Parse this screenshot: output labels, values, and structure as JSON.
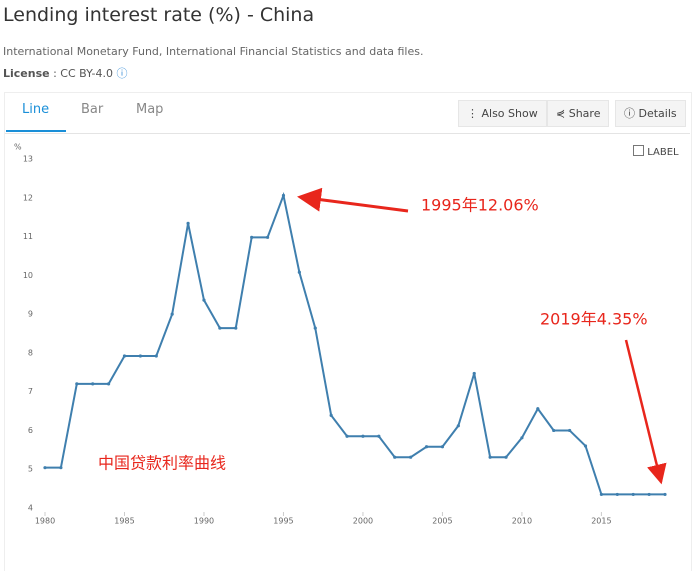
{
  "header": {
    "title": "Lending interest rate (%) - China",
    "source": "International Monetary Fund, International Financial Statistics and data files.",
    "license_label": "License",
    "license_value": ": CC BY-4.0"
  },
  "tabs": [
    "Line",
    "Bar",
    "Map"
  ],
  "buttons": [
    "Also Show",
    "Share",
    "Details"
  ],
  "label_toggle": "LABEL",
  "chart_data": {
    "type": "line",
    "y_label": "%",
    "color": "#3f7fae",
    "x": [
      1980,
      1981,
      1982,
      1983,
      1984,
      1985,
      1986,
      1987,
      1988,
      1989,
      1990,
      1991,
      1992,
      1993,
      1994,
      1995,
      1996,
      1997,
      1998,
      1999,
      2000,
      2001,
      2002,
      2003,
      2004,
      2005,
      2006,
      2007,
      2008,
      2009,
      2010,
      2011,
      2012,
      2013,
      2014,
      2015,
      2016,
      2017,
      2018,
      2019
    ],
    "values": [
      5.04,
      5.04,
      7.2,
      7.2,
      7.2,
      7.92,
      7.92,
      7.92,
      9.0,
      11.34,
      9.36,
      8.64,
      8.64,
      10.98,
      10.98,
      12.06,
      10.08,
      8.64,
      6.39,
      5.85,
      5.85,
      5.85,
      5.31,
      5.31,
      5.58,
      5.58,
      6.12,
      7.47,
      5.31,
      5.31,
      5.81,
      6.56,
      6.0,
      6.0,
      5.6,
      4.35,
      4.35,
      4.35,
      4.35,
      4.35
    ],
    "xlim": [
      1980,
      2019
    ],
    "ylim": [
      4,
      13
    ],
    "xticks": [
      1980,
      1985,
      1990,
      1995,
      2000,
      2005,
      2010,
      2015
    ],
    "yticks": [
      4,
      5,
      6,
      7,
      8,
      9,
      10,
      11,
      12,
      13
    ],
    "annotations": [
      "1995年12.06%",
      "2019年4.35%",
      "中国贷款利率曲线"
    ]
  }
}
